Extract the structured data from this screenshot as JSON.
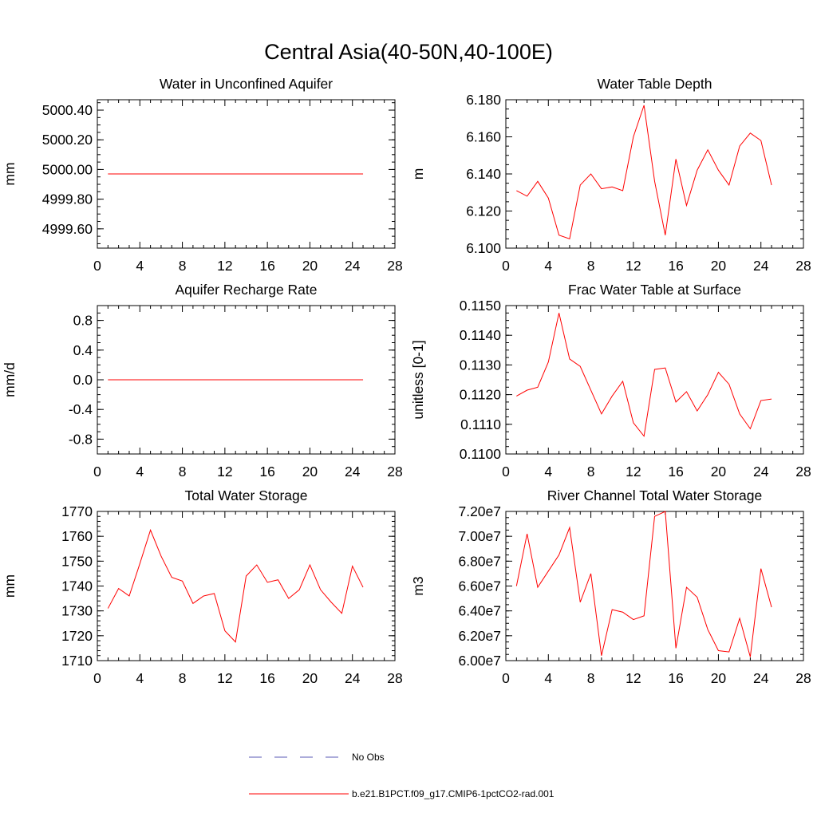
{
  "figure": {
    "title": "Central Asia(40-50N,40-100E)"
  },
  "legend": {
    "entries": [
      {
        "label": "No Obs",
        "style": "dashed",
        "color": "#5a5ab4"
      },
      {
        "label": "b.e21.B1PCT.f09_g17.CMIP6-1pctCO2-rad.001",
        "style": "solid",
        "color": "#ff0000"
      }
    ]
  },
  "chart_data": [
    {
      "type": "line",
      "title": "Water in Unconfined Aquifer",
      "xlabel": "",
      "ylabel": "mm",
      "xlim": [
        0,
        28
      ],
      "ylim": [
        4999.47,
        5000.47
      ],
      "xticks": [
        0,
        4,
        8,
        12,
        16,
        20,
        24,
        28
      ],
      "yticks": [
        4999.6,
        4999.8,
        5000.0,
        5000.2,
        5000.4
      ],
      "ytick_labels": [
        "4999.60",
        "4999.80",
        "5000.00",
        "5000.20",
        "5000.40"
      ],
      "ytick_minor": 0.05,
      "grid": false,
      "series": [
        {
          "name": "b.e21.B1PCT.f09_g17.CMIP6-1pctCO2-rad.001",
          "color": "#ff0000",
          "x": [
            1,
            2,
            3,
            4,
            5,
            6,
            7,
            8,
            9,
            10,
            11,
            12,
            13,
            14,
            15,
            16,
            17,
            18,
            19,
            20,
            21,
            22,
            23,
            24,
            25
          ],
          "y": [
            4999.97,
            4999.97,
            4999.97,
            4999.97,
            4999.97,
            4999.97,
            4999.97,
            4999.97,
            4999.97,
            4999.97,
            4999.97,
            4999.97,
            4999.97,
            4999.97,
            4999.97,
            4999.97,
            4999.97,
            4999.97,
            4999.97,
            4999.97,
            4999.97,
            4999.97,
            4999.97,
            4999.97,
            4999.97
          ]
        }
      ]
    },
    {
      "type": "line",
      "title": "Water Table Depth",
      "xlabel": "",
      "ylabel": "m",
      "xlim": [
        0,
        28
      ],
      "ylim": [
        6.1,
        6.18
      ],
      "xticks": [
        0,
        4,
        8,
        12,
        16,
        20,
        24,
        28
      ],
      "yticks": [
        6.1,
        6.12,
        6.14,
        6.16,
        6.18
      ],
      "ytick_labels": [
        "6.100",
        "6.120",
        "6.140",
        "6.160",
        "6.180"
      ],
      "ytick_minor": 0.005,
      "grid": false,
      "series": [
        {
          "name": "b.e21.B1PCT.f09_g17.CMIP6-1pctCO2-rad.001",
          "color": "#ff0000",
          "x": [
            1,
            2,
            3,
            4,
            5,
            6,
            7,
            8,
            9,
            10,
            11,
            12,
            13,
            14,
            15,
            16,
            17,
            18,
            19,
            20,
            21,
            22,
            23,
            24,
            25
          ],
          "y": [
            6.131,
            6.128,
            6.136,
            6.127,
            6.107,
            6.105,
            6.134,
            6.14,
            6.132,
            6.133,
            6.131,
            6.16,
            6.177,
            6.136,
            6.107,
            6.148,
            6.123,
            6.142,
            6.153,
            6.142,
            6.134,
            6.155,
            6.162,
            6.158,
            6.134
          ]
        }
      ]
    },
    {
      "type": "line",
      "title": "Aquifer Recharge Rate",
      "xlabel": "",
      "ylabel": "mm/d",
      "xlim": [
        0,
        28
      ],
      "ylim": [
        -1,
        1
      ],
      "xticks": [
        0,
        4,
        8,
        12,
        16,
        20,
        24,
        28
      ],
      "yticks": [
        -0.8,
        -0.4,
        0.0,
        0.4,
        0.8
      ],
      "ytick_labels": [
        "-0.8",
        "-0.4",
        "0.0",
        "0.4",
        "0.8"
      ],
      "ytick_minor": 0.1,
      "grid": false,
      "series": [
        {
          "name": "b.e21.B1PCT.f09_g17.CMIP6-1pctCO2-rad.001",
          "color": "#ff0000",
          "x": [
            1,
            2,
            3,
            4,
            5,
            6,
            7,
            8,
            9,
            10,
            11,
            12,
            13,
            14,
            15,
            16,
            17,
            18,
            19,
            20,
            21,
            22,
            23,
            24,
            25
          ],
          "y": [
            0,
            0,
            0,
            0,
            0,
            0,
            0,
            0,
            0,
            0,
            0,
            0,
            0,
            0,
            0,
            0,
            0,
            0,
            0,
            0,
            0,
            0,
            0,
            0,
            0
          ]
        }
      ]
    },
    {
      "type": "line",
      "title": "Frac Water Table at Surface",
      "xlabel": "",
      "ylabel": "unitless [0-1]",
      "xlim": [
        0,
        28
      ],
      "ylim": [
        0.11,
        0.115
      ],
      "xticks": [
        0,
        4,
        8,
        12,
        16,
        20,
        24,
        28
      ],
      "yticks": [
        0.11,
        0.111,
        0.112,
        0.113,
        0.114,
        0.115
      ],
      "ytick_labels": [
        "0.1100",
        "0.1110",
        "0.1120",
        "0.1130",
        "0.1140",
        "0.1150"
      ],
      "ytick_minor": 0.00025,
      "grid": false,
      "series": [
        {
          "name": "b.e21.B1PCT.f09_g17.CMIP6-1pctCO2-rad.001",
          "color": "#ff0000",
          "x": [
            1,
            2,
            3,
            4,
            5,
            6,
            7,
            8,
            9,
            10,
            11,
            12,
            13,
            14,
            15,
            16,
            17,
            18,
            19,
            20,
            21,
            22,
            23,
            24,
            25
          ],
          "y": [
            0.11195,
            0.11215,
            0.11225,
            0.1131,
            0.11475,
            0.1132,
            0.11295,
            0.11215,
            0.11135,
            0.11195,
            0.11245,
            0.11105,
            0.1106,
            0.11285,
            0.1129,
            0.11175,
            0.1121,
            0.11145,
            0.112,
            0.11275,
            0.11235,
            0.11135,
            0.11085,
            0.1118,
            0.11185
          ]
        }
      ]
    },
    {
      "type": "line",
      "title": "Total Water Storage",
      "xlabel": "",
      "ylabel": "mm",
      "xlim": [
        0,
        28
      ],
      "ylim": [
        1710,
        1770
      ],
      "xticks": [
        0,
        4,
        8,
        12,
        16,
        20,
        24,
        28
      ],
      "yticks": [
        1710,
        1720,
        1730,
        1740,
        1750,
        1760,
        1770
      ],
      "ytick_labels": [
        "1710",
        "1720",
        "1730",
        "1740",
        "1750",
        "1760",
        "1770"
      ],
      "ytick_minor": 2,
      "grid": false,
      "series": [
        {
          "name": "b.e21.B1PCT.f09_g17.CMIP6-1pctCO2-rad.001",
          "color": "#ff0000",
          "x": [
            1,
            2,
            3,
            4,
            5,
            6,
            7,
            8,
            9,
            10,
            11,
            12,
            13,
            14,
            15,
            16,
            17,
            18,
            19,
            20,
            21,
            22,
            23,
            24,
            25
          ],
          "y": [
            1731,
            1739,
            1736,
            1749,
            1762.5,
            1752,
            1743.5,
            1742,
            1733,
            1736,
            1737,
            1722,
            1717.5,
            1744,
            1748.5,
            1741.5,
            1742.5,
            1735,
            1738.5,
            1748.5,
            1738.5,
            1733.5,
            1729,
            1748,
            1739.5
          ]
        }
      ]
    },
    {
      "type": "line",
      "title": "River Channel Total Water Storage",
      "xlabel": "",
      "ylabel": "m3",
      "xlim": [
        0,
        28
      ],
      "ylim": [
        60000000,
        72000000
      ],
      "xticks": [
        0,
        4,
        8,
        12,
        16,
        20,
        24,
        28
      ],
      "yticks": [
        60000000,
        62000000,
        64000000,
        66000000,
        68000000,
        70000000,
        72000000
      ],
      "ytick_labels": [
        "6.00e7",
        "6.20e7",
        "6.40e7",
        "6.60e7",
        "6.80e7",
        "7.00e7",
        "7.20e7"
      ],
      "ytick_minor": 500000,
      "grid": false,
      "series": [
        {
          "name": "b.e21.B1PCT.f09_g17.CMIP6-1pctCO2-rad.001",
          "color": "#ff0000",
          "x": [
            1,
            2,
            3,
            4,
            5,
            6,
            7,
            8,
            9,
            10,
            11,
            12,
            13,
            14,
            15,
            16,
            17,
            18,
            19,
            20,
            21,
            22,
            23,
            24,
            25
          ],
          "y": [
            66000000,
            70200000,
            65900000,
            67200000,
            68500000,
            70700000,
            64700000,
            67000000,
            60400000,
            64100000,
            63900000,
            63300000,
            63600000,
            71600000,
            72000000,
            61000000,
            65900000,
            65100000,
            62500000,
            60800000,
            60700000,
            63400000,
            60300000,
            67400000,
            64300000
          ]
        }
      ]
    }
  ]
}
